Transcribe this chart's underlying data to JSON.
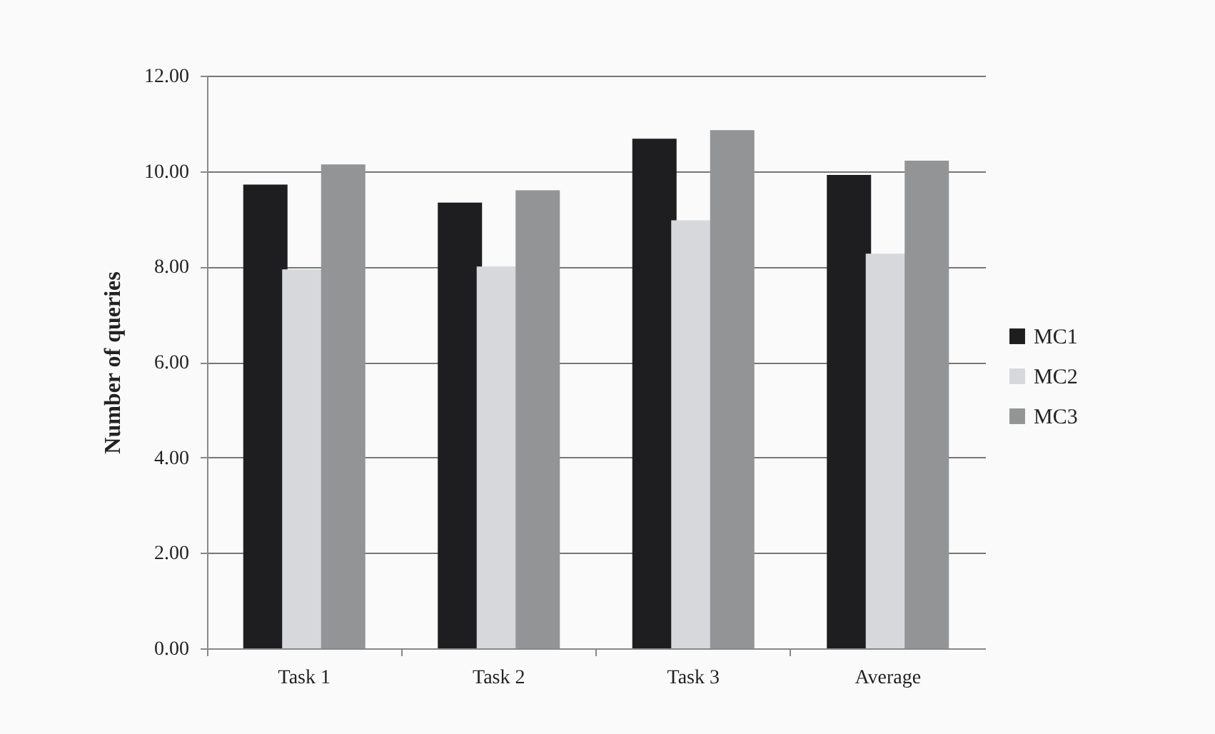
{
  "chart_data": {
    "type": "bar",
    "ylabel": "Number of queries",
    "categories": [
      "Task 1",
      "Task 2",
      "Task 3",
      "Average"
    ],
    "series": [
      {
        "name": "MC1",
        "color": "#1e1e20",
        "values": [
          9.72,
          9.34,
          10.68,
          9.92
        ]
      },
      {
        "name": "MC2",
        "color": "#d6d8db",
        "values": [
          7.94,
          8.0,
          8.97,
          8.27
        ]
      },
      {
        "name": "MC3",
        "color": "#939496",
        "values": [
          10.14,
          9.6,
          10.86,
          10.22
        ]
      }
    ],
    "ylim": [
      0,
      12
    ],
    "yticks": [
      {
        "value": 0,
        "label": "0.00"
      },
      {
        "value": 2,
        "label": "2.00"
      },
      {
        "value": 4,
        "label": "4.00"
      },
      {
        "value": 6,
        "label": "6.00"
      },
      {
        "value": 8,
        "label": "8.00"
      },
      {
        "value": 10,
        "label": "10.00"
      },
      {
        "value": 12,
        "label": "12.00"
      }
    ],
    "grid": "y",
    "legend": "right"
  }
}
